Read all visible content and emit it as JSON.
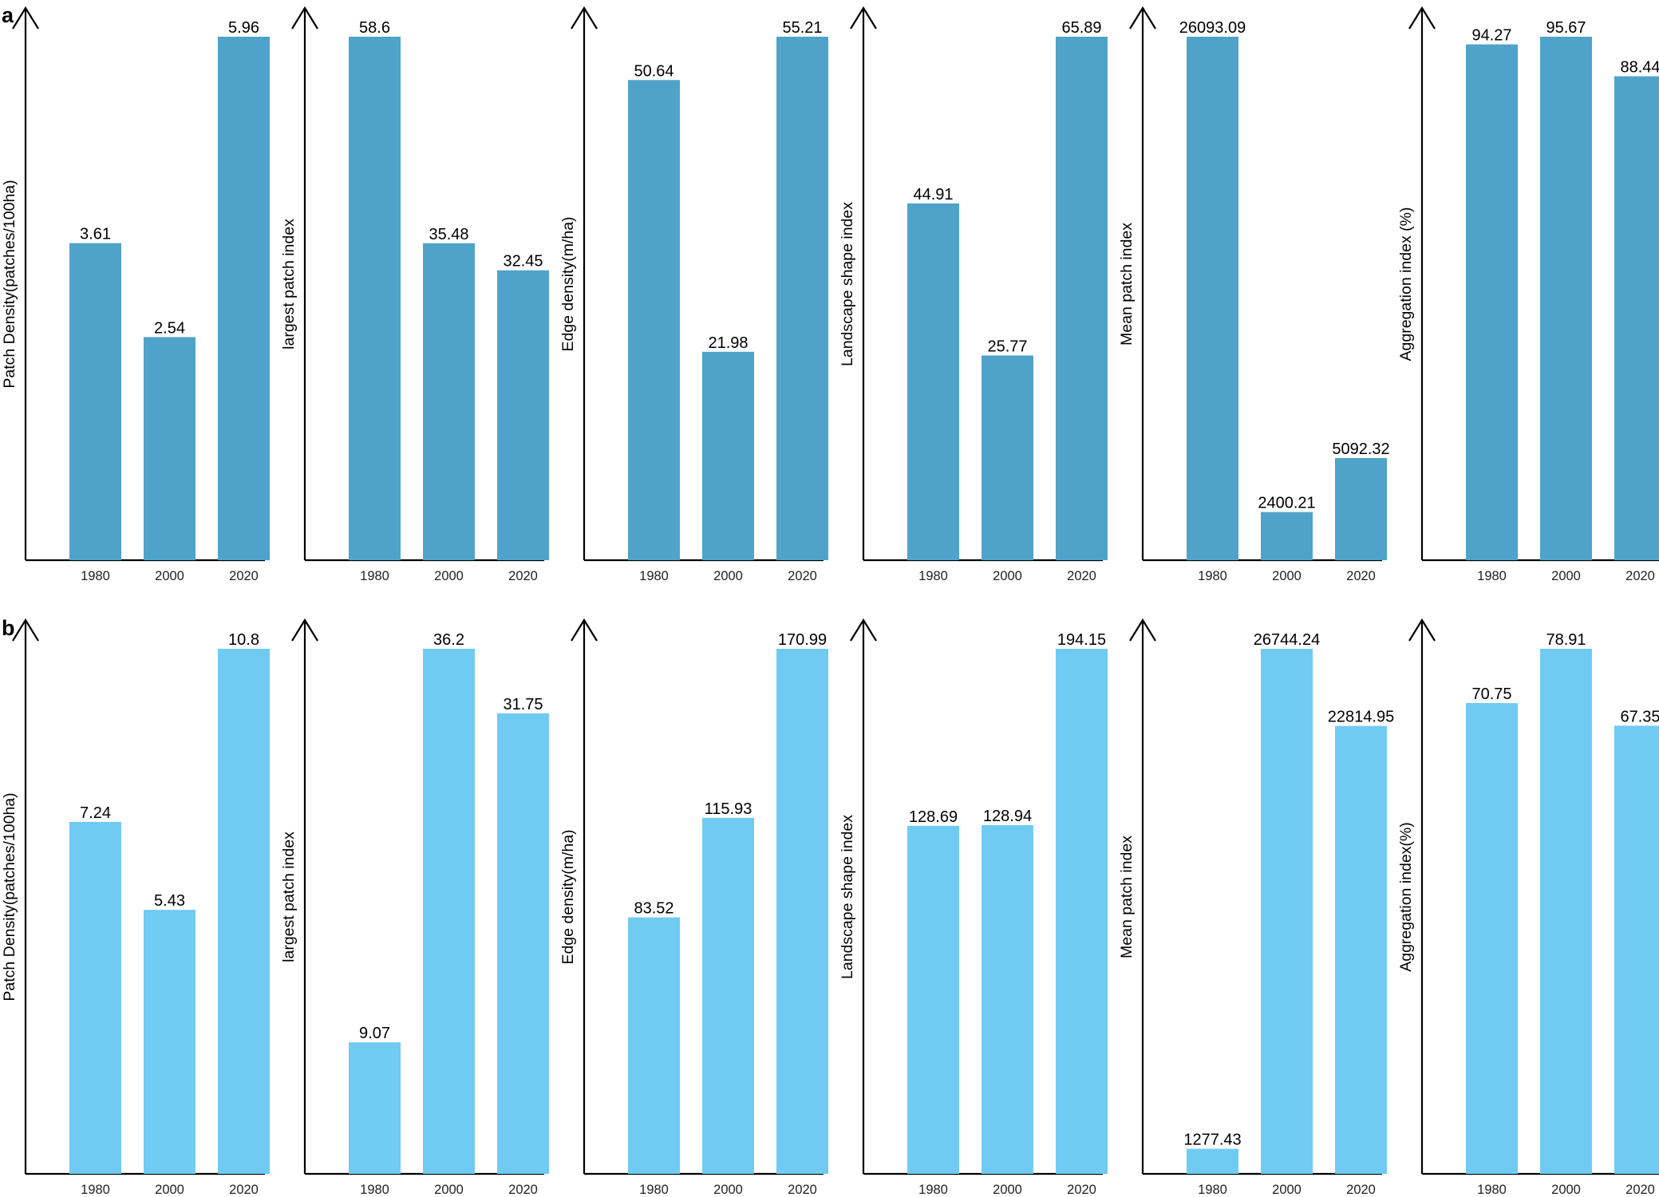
{
  "panels": [
    {
      "letter": "a",
      "color": "#4fa3c9"
    },
    {
      "letter": "b",
      "color": "#70cbf3"
    }
  ],
  "chart_data": [
    {
      "type": "bar",
      "panel": "a",
      "ylabel": "Patch Density(patches/100ha)",
      "categories": [
        "1980",
        "2000",
        "2020"
      ],
      "values": [
        3.61,
        2.54,
        5.96
      ],
      "labels": [
        "3.61",
        "2.54",
        "5.96"
      ]
    },
    {
      "type": "bar",
      "panel": "a",
      "ylabel": "largest patch index",
      "categories": [
        "1980",
        "2000",
        "2020"
      ],
      "values": [
        58.6,
        35.48,
        32.45
      ],
      "labels": [
        "58.6",
        "35.48",
        "32.45"
      ]
    },
    {
      "type": "bar",
      "panel": "a",
      "ylabel": "Edge density(m/ha)",
      "categories": [
        "1980",
        "2000",
        "2020"
      ],
      "values": [
        50.64,
        21.98,
        55.21
      ],
      "labels": [
        "50.64",
        "21.98",
        "55.21"
      ]
    },
    {
      "type": "bar",
      "panel": "a",
      "ylabel": "Landscape shape index",
      "categories": [
        "1980",
        "2000",
        "2020"
      ],
      "values": [
        44.91,
        25.77,
        65.89
      ],
      "labels": [
        "44.91",
        "25.77",
        "65.89"
      ]
    },
    {
      "type": "bar",
      "panel": "a",
      "ylabel": "Mean patch index",
      "categories": [
        "1980",
        "2000",
        "2020"
      ],
      "values": [
        26093.09,
        2400.21,
        5092.32
      ],
      "labels": [
        "26093.09",
        "2400.21",
        "5092.32"
      ]
    },
    {
      "type": "bar",
      "panel": "a",
      "ylabel": "Aggregation index (%)",
      "categories": [
        "1980",
        "2000",
        "2020"
      ],
      "values": [
        94.27,
        95.67,
        88.44
      ],
      "labels": [
        "94.27",
        "95.67",
        "88.44"
      ]
    },
    {
      "type": "bar",
      "panel": "b",
      "ylabel": "Patch Density(patches/100ha)",
      "categories": [
        "1980",
        "2000",
        "2020"
      ],
      "values": [
        7.24,
        5.43,
        10.8
      ],
      "labels": [
        "7.24",
        "5.43",
        "10.8"
      ]
    },
    {
      "type": "bar",
      "panel": "b",
      "ylabel": "largest patch index",
      "categories": [
        "1980",
        "2000",
        "2020"
      ],
      "values": [
        9.07,
        36.2,
        31.75
      ],
      "labels": [
        "9.07",
        "36.2",
        "31.75"
      ]
    },
    {
      "type": "bar",
      "panel": "b",
      "ylabel": "Edge density(m/ha)",
      "categories": [
        "1980",
        "2000",
        "2020"
      ],
      "values": [
        83.52,
        115.93,
        170.99
      ],
      "labels": [
        "83.52",
        "115.93",
        "170.99"
      ]
    },
    {
      "type": "bar",
      "panel": "b",
      "ylabel": "Landscape shape index",
      "categories": [
        "1980",
        "2000",
        "2020"
      ],
      "values": [
        128.69,
        128.94,
        194.15
      ],
      "labels": [
        "128.69",
        "128.94",
        "194.15"
      ]
    },
    {
      "type": "bar",
      "panel": "b",
      "ylabel": "Mean patch index",
      "categories": [
        "1980",
        "2000",
        "2020"
      ],
      "values": [
        1277.43,
        26744.24,
        22814.95
      ],
      "labels": [
        "1277.43",
        "26744.24",
        "22814.95"
      ]
    },
    {
      "type": "bar",
      "panel": "b",
      "ylabel": "Aggregation index(%)",
      "categories": [
        "1980",
        "2000",
        "2020"
      ],
      "values": [
        70.75,
        78.91,
        67.35
      ],
      "labels": [
        "70.75",
        "78.91",
        "67.35"
      ]
    }
  ]
}
